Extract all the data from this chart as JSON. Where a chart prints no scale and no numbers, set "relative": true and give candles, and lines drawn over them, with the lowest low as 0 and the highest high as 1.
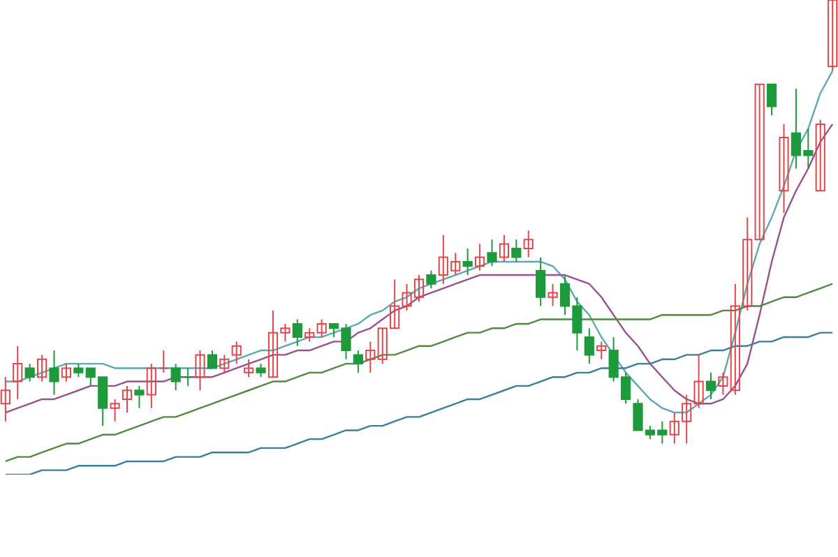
{
  "chart_data": {
    "type": "candlestick",
    "relative": true,
    "categories": [
      null,
      null,
      null,
      null,
      null,
      null,
      null,
      null,
      null,
      null,
      null,
      null,
      null,
      null,
      null,
      null,
      null,
      null,
      null,
      null,
      null,
      null,
      null,
      null,
      null,
      null,
      null,
      null,
      null,
      null,
      null,
      null,
      null,
      null,
      null,
      null,
      null,
      null,
      null,
      null,
      null,
      null,
      null,
      null,
      null,
      null,
      null,
      null,
      null,
      null,
      null,
      null,
      null,
      null,
      null,
      null,
      null,
      null,
      null,
      null,
      null,
      null,
      null,
      null,
      null,
      null,
      null,
      null,
      null
    ],
    "ohlc": [
      [
        0.09,
        0.15,
        0.05,
        0.12
      ],
      [
        0.14,
        0.22,
        0.1,
        0.18
      ],
      [
        0.17,
        0.18,
        0.14,
        0.15
      ],
      [
        0.15,
        0.2,
        0.14,
        0.19
      ],
      [
        0.17,
        0.21,
        0.11,
        0.14
      ],
      [
        0.15,
        0.18,
        0.14,
        0.17
      ],
      [
        0.17,
        0.18,
        0.15,
        0.16
      ],
      [
        0.17,
        0.17,
        0.13,
        0.15
      ],
      [
        0.15,
        0.15,
        0.04,
        0.08
      ],
      [
        0.08,
        0.1,
        0.05,
        0.09
      ],
      [
        0.1,
        0.13,
        0.07,
        0.12
      ],
      [
        0.12,
        0.13,
        0.08,
        0.11
      ],
      [
        0.11,
        0.18,
        0.08,
        0.17
      ],
      [
        0.17,
        0.21,
        0.16,
        0.17
      ],
      [
        0.17,
        0.18,
        0.12,
        0.14
      ],
      [
        0.15,
        0.17,
        0.13,
        0.15
      ],
      [
        0.15,
        0.21,
        0.12,
        0.2
      ],
      [
        0.2,
        0.21,
        0.17,
        0.17
      ],
      [
        0.17,
        0.2,
        0.16,
        0.19
      ],
      [
        0.2,
        0.23,
        0.18,
        0.22
      ],
      [
        0.16,
        0.19,
        0.15,
        0.17
      ],
      [
        0.17,
        0.18,
        0.15,
        0.16
      ],
      [
        0.15,
        0.3,
        0.15,
        0.25
      ],
      [
        0.25,
        0.27,
        0.23,
        0.26
      ],
      [
        0.27,
        0.28,
        0.22,
        0.24
      ],
      [
        0.24,
        0.26,
        0.23,
        0.25
      ],
      [
        0.25,
        0.28,
        0.24,
        0.27
      ],
      [
        0.27,
        0.27,
        0.24,
        0.26
      ],
      [
        0.26,
        0.27,
        0.19,
        0.21
      ],
      [
        0.2,
        0.21,
        0.16,
        0.18
      ],
      [
        0.19,
        0.23,
        0.16,
        0.21
      ],
      [
        0.19,
        0.26,
        0.18,
        0.26
      ],
      [
        0.26,
        0.37,
        0.26,
        0.31
      ],
      [
        0.31,
        0.36,
        0.3,
        0.34
      ],
      [
        0.33,
        0.38,
        0.32,
        0.37
      ],
      [
        0.38,
        0.39,
        0.35,
        0.36
      ],
      [
        0.38,
        0.47,
        0.36,
        0.42
      ],
      [
        0.39,
        0.43,
        0.38,
        0.41
      ],
      [
        0.41,
        0.44,
        0.38,
        0.4
      ],
      [
        0.4,
        0.45,
        0.39,
        0.42
      ],
      [
        0.43,
        0.46,
        0.4,
        0.41
      ],
      [
        0.42,
        0.47,
        0.41,
        0.45
      ],
      [
        0.44,
        0.46,
        0.41,
        0.42
      ],
      [
        0.44,
        0.48,
        0.42,
        0.46
      ],
      [
        0.39,
        0.42,
        0.31,
        0.33
      ],
      [
        0.33,
        0.36,
        0.31,
        0.34
      ],
      [
        0.36,
        0.38,
        0.29,
        0.31
      ],
      [
        0.31,
        0.33,
        0.21,
        0.25
      ],
      [
        0.24,
        0.26,
        0.18,
        0.2
      ],
      [
        0.21,
        0.23,
        0.19,
        0.22
      ],
      [
        0.21,
        0.24,
        0.14,
        0.15
      ],
      [
        0.15,
        0.16,
        0.09,
        0.1
      ],
      [
        0.09,
        0.1,
        0.03,
        0.03
      ],
      [
        0.03,
        0.04,
        0.01,
        0.02
      ],
      [
        0.03,
        0.05,
        0.0,
        0.02
      ],
      [
        0.02,
        0.07,
        0.0,
        0.05
      ],
      [
        0.05,
        0.11,
        0.0,
        0.09
      ],
      [
        0.09,
        0.2,
        0.08,
        0.14
      ],
      [
        0.14,
        0.16,
        0.1,
        0.12
      ],
      [
        0.13,
        0.16,
        0.11,
        0.15
      ],
      [
        0.12,
        0.36,
        0.11,
        0.31
      ],
      [
        0.31,
        0.51,
        0.3,
        0.46
      ],
      [
        0.46,
        0.81,
        0.46,
        0.81
      ],
      [
        0.81,
        0.81,
        0.74,
        0.76
      ],
      [
        0.57,
        0.72,
        0.52,
        0.69
      ],
      [
        0.7,
        0.8,
        0.62,
        0.65
      ],
      [
        0.66,
        0.71,
        0.62,
        0.65
      ],
      [
        0.57,
        0.73,
        0.57,
        0.72
      ],
      [
        0.85,
        1,
        0.84,
        1
      ]
    ],
    "colors": [
      "#e0474c",
      "#e0474c",
      "#1e9a3c",
      "#e0474c",
      "#1e9a3c",
      "#e0474c",
      "#1e9a3c",
      "#1e9a3c",
      "#1e9a3c",
      "#e0474c",
      "#e0474c",
      "#1e9a3c",
      "#e0474c",
      "#e0474c",
      "#1e9a3c",
      "#1e9a3c",
      "#e0474c",
      "#1e9a3c",
      "#e0474c",
      "#e0474c",
      "#e0474c",
      "#1e9a3c",
      "#e0474c",
      "#e0474c",
      "#1e9a3c",
      "#e0474c",
      "#e0474c",
      "#1e9a3c",
      "#1e9a3c",
      "#1e9a3c",
      "#e0474c",
      "#e0474c",
      "#e0474c",
      "#e0474c",
      "#e0474c",
      "#1e9a3c",
      "#e0474c",
      "#e0474c",
      "#1e9a3c",
      "#e0474c",
      "#1e9a3c",
      "#e0474c",
      "#1e9a3c",
      "#e0474c",
      "#1e9a3c",
      "#e0474c",
      "#1e9a3c",
      "#1e9a3c",
      "#1e9a3c",
      "#e0474c",
      "#1e9a3c",
      "#1e9a3c",
      "#1e9a3c",
      "#1e9a3c",
      "#1e9a3c",
      "#e0474c",
      "#e0474c",
      "#e0474c",
      "#1e9a3c",
      "#e0474c",
      "#e0474c",
      "#e0474c",
      "#e0474c",
      "#1e9a3c",
      "#e0474c",
      "#1e9a3c",
      "#1e9a3c",
      "#e0474c",
      "#e0474c"
    ],
    "series": [
      {
        "type": "line",
        "color": "#5aa9b3",
        "values": [
          0.14,
          0.14,
          0.15,
          0.16,
          0.17,
          0.18,
          0.18,
          0.18,
          0.18,
          0.17,
          0.17,
          0.17,
          0.17,
          0.17,
          0.17,
          0.17,
          0.17,
          0.17,
          0.18,
          0.19,
          0.2,
          0.21,
          0.21,
          0.22,
          0.23,
          0.24,
          0.24,
          0.25,
          0.26,
          0.27,
          0.29,
          0.3,
          0.32,
          0.33,
          0.35,
          0.36,
          0.37,
          0.38,
          0.39,
          0.4,
          0.41,
          0.41,
          0.41,
          0.41,
          0.41,
          0.4,
          0.37,
          0.32,
          0.29,
          0.24,
          0.2,
          0.16,
          0.13,
          0.1,
          0.08,
          0.07,
          0.07,
          0.09,
          0.11,
          0.15,
          0.25,
          0.36,
          0.45,
          0.51,
          0.58,
          0.66,
          0.71,
          0.79,
          0.84
        ]
      },
      {
        "type": "line",
        "color": "#9b4f8e",
        "values": [
          0.07,
          0.08,
          0.09,
          0.1,
          0.1,
          0.11,
          0.12,
          0.13,
          0.13,
          0.13,
          0.14,
          0.14,
          0.14,
          0.14,
          0.15,
          0.15,
          0.15,
          0.15,
          0.16,
          0.17,
          0.18,
          0.19,
          0.2,
          0.2,
          0.21,
          0.21,
          0.22,
          0.23,
          0.23,
          0.25,
          0.26,
          0.28,
          0.3,
          0.31,
          0.33,
          0.34,
          0.35,
          0.36,
          0.37,
          0.38,
          0.38,
          0.38,
          0.38,
          0.38,
          0.38,
          0.38,
          0.38,
          0.37,
          0.36,
          0.33,
          0.29,
          0.25,
          0.22,
          0.18,
          0.15,
          0.12,
          0.1,
          0.09,
          0.09,
          0.1,
          0.13,
          0.18,
          0.29,
          0.41,
          0.51,
          0.57,
          0.62,
          0.68,
          0.72
        ]
      },
      {
        "type": "line",
        "color": "#4f8a3f",
        "values": [
          -0.04,
          -0.03,
          -0.03,
          -0.02,
          -0.01,
          0,
          0,
          0.01,
          0.02,
          0.02,
          0.03,
          0.04,
          0.05,
          0.06,
          0.06,
          0.07,
          0.08,
          0.09,
          0.1,
          0.11,
          0.12,
          0.13,
          0.14,
          0.14,
          0.15,
          0.16,
          0.16,
          0.17,
          0.18,
          0.18,
          0.19,
          0.2,
          0.2,
          0.21,
          0.22,
          0.22,
          0.23,
          0.24,
          0.25,
          0.25,
          0.26,
          0.26,
          0.27,
          0.27,
          0.28,
          0.28,
          0.28,
          0.28,
          0.28,
          0.28,
          0.28,
          0.28,
          0.28,
          0.28,
          0.29,
          0.29,
          0.29,
          0.29,
          0.29,
          0.3,
          0.3,
          0.31,
          0.31,
          0.32,
          0.33,
          0.33,
          0.34,
          0.35,
          0.36
        ]
      },
      {
        "type": "line",
        "color": "#3a7f9a",
        "values": [
          -0.07,
          -0.07,
          -0.07,
          -0.06,
          -0.06,
          -0.06,
          -0.05,
          -0.05,
          -0.05,
          -0.05,
          -0.04,
          -0.04,
          -0.04,
          -0.04,
          -0.03,
          -0.03,
          -0.03,
          -0.02,
          -0.02,
          -0.02,
          -0.02,
          -0.01,
          -0.01,
          -0.01,
          0,
          0.01,
          0.01,
          0.02,
          0.03,
          0.03,
          0.04,
          0.04,
          0.05,
          0.06,
          0.06,
          0.07,
          0.08,
          0.09,
          0.1,
          0.1,
          0.11,
          0.12,
          0.13,
          0.13,
          0.14,
          0.15,
          0.15,
          0.16,
          0.16,
          0.17,
          0.17,
          0.17,
          0.18,
          0.18,
          0.19,
          0.19,
          0.2,
          0.2,
          0.21,
          0.21,
          0.22,
          0.22,
          0.23,
          0.23,
          0.24,
          0.24,
          0.24,
          0.25,
          0.25
        ]
      }
    ]
  }
}
